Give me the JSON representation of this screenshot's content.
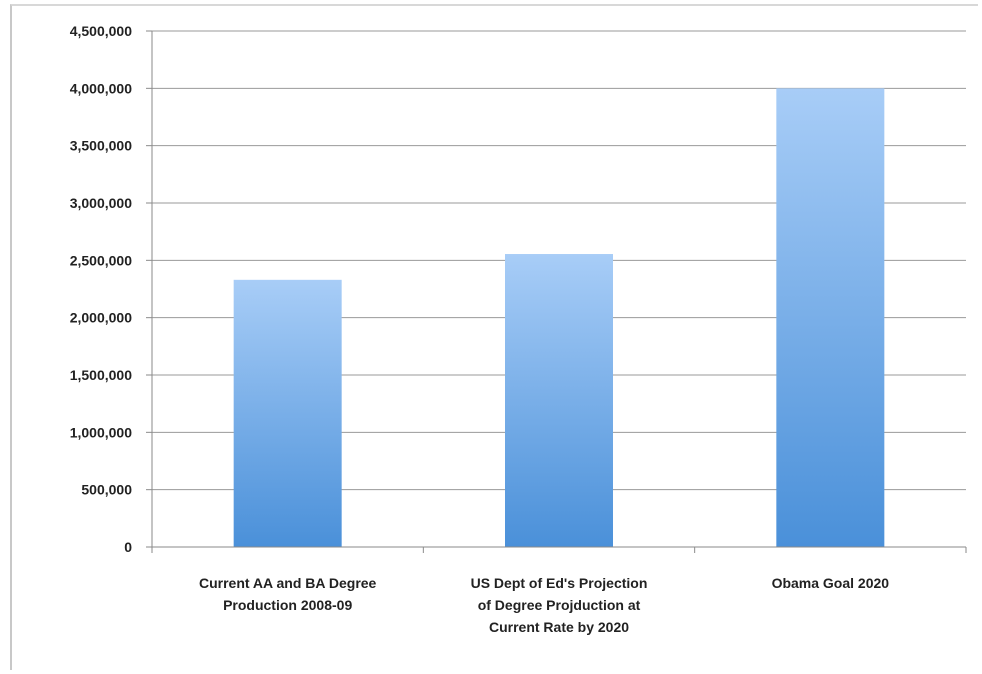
{
  "chart_data": {
    "type": "bar",
    "categories": [
      [
        "Current AA and BA Degree",
        "Production 2008-09"
      ],
      [
        "US Dept of Ed's Projection",
        "of Degree Projduction at",
        "Current Rate by 2020"
      ],
      [
        "Obama Goal 2020"
      ]
    ],
    "values": [
      2330000,
      2555000,
      4000000
    ],
    "y_ticks": [
      "0",
      "500,000",
      "1,000,000",
      "1,500,000",
      "2,000,000",
      "2,500,000",
      "3,000,000",
      "3,500,000",
      "4,000,000",
      "4,500,000"
    ],
    "ylim": [
      0,
      4500000
    ],
    "ytick_step": 500000,
    "title": "",
    "xlabel": "",
    "ylabel": "",
    "grid": true,
    "legend": "none",
    "colors": {
      "bar_top": "#a8cdf7",
      "bar_bottom": "#4a90d9",
      "grid": "#9a9a9a",
      "axis": "#8a8a8a"
    }
  }
}
